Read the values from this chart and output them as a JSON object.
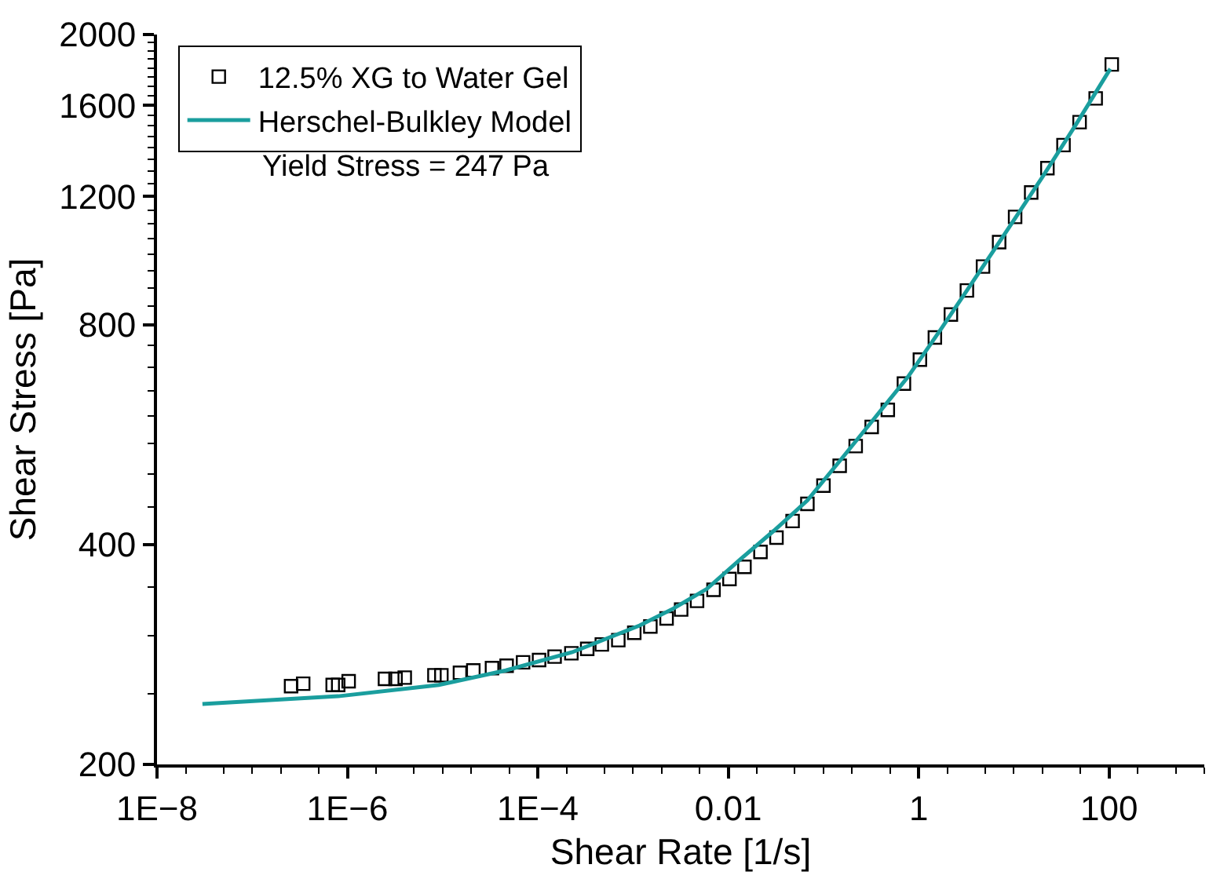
{
  "chart_data": {
    "type": "scatter",
    "xlabel": "Shear Rate [1/s]",
    "ylabel": "Shear Stress [Pa]",
    "log": "xy",
    "xlim": [
      1e-08,
      1000
    ],
    "ylim": [
      200,
      2000
    ],
    "xticks": [
      {
        "value": 1e-08,
        "label": "1E−8"
      },
      {
        "value": 1e-06,
        "label": "1E−6"
      },
      {
        "value": 0.0001,
        "label": "1E−4"
      },
      {
        "value": 0.01,
        "label": "0.01"
      },
      {
        "value": 1,
        "label": "1"
      },
      {
        "value": 100,
        "label": "100"
      }
    ],
    "yticks": [
      200,
      400,
      800,
      1200,
      1600,
      2000
    ],
    "legend": "top left",
    "annotations": [
      "Yield Stress = 247 Pa"
    ],
    "series": [
      {
        "name": "12.5% XG to Water Gel",
        "marker": "square",
        "color": "#000000",
        "x": [
          2.56e-07,
          3.43e-07,
          7e-07,
          8e-07,
          1.03e-06,
          2.48e-06,
          3.2e-06,
          4e-06,
          8.2e-06,
          9.7e-06,
          1.52e-05,
          2.1e-05,
          3.3e-05,
          4.7e-05,
          7e-05,
          0.000103,
          0.00015,
          0.000225,
          0.00033,
          0.00047,
          0.0007,
          0.00103,
          0.00152,
          0.00225,
          0.0032,
          0.0047,
          0.007,
          0.0103,
          0.0148,
          0.0218,
          0.0321,
          0.0474,
          0.0678,
          0.1,
          0.148,
          0.218,
          0.321,
          0.474,
          0.7,
          1.03,
          1.48,
          2.18,
          3.21,
          4.74,
          7.0,
          10.3,
          15.2,
          22.5,
          33.2,
          49.0,
          72.3,
          106.7
        ],
        "values": [
          256,
          258,
          257,
          257,
          260,
          262,
          262,
          263,
          265,
          265,
          267,
          269,
          271,
          273,
          276,
          278,
          281,
          284,
          288,
          292,
          296,
          303,
          309,
          317,
          326,
          335,
          347,
          359,
          373,
          391,
          409,
          431,
          455,
          482,
          513,
          546,
          580,
          612,
          665,
          717,
          769,
          827,
          892,
          962,
          1039,
          1125,
          1215,
          1312,
          1411,
          1517,
          1635,
          1820
        ]
      },
      {
        "name": "Herschel-Bulkley Model",
        "type": "line",
        "marker": "none",
        "line_style": "solid",
        "color": "#1a9e9e",
        "x": [
          3e-08,
          8e-07,
          9.1e-06,
          4.6e-05,
          0.00023,
          0.00117,
          0.00265,
          0.00596,
          0.0134,
          0.0301,
          0.0678,
          0.152,
          0.343,
          0.77,
          1.73,
          3.91,
          8.8,
          19.8,
          44.5,
          103
        ],
        "values": [
          242,
          248,
          257,
          269,
          285,
          310,
          327,
          348,
          382,
          418,
          460,
          523,
          596,
          679,
          791,
          927,
          1086,
          1274,
          1503,
          1795
        ]
      }
    ]
  }
}
